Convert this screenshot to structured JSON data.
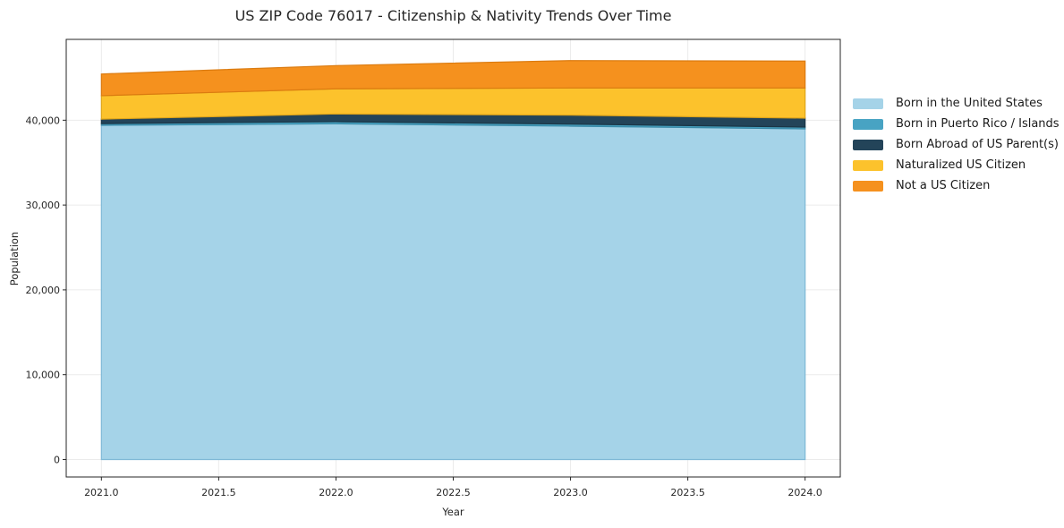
{
  "chart_data": {
    "type": "area",
    "stacked": true,
    "title": "US ZIP Code 76017 - Citizenship & Nativity Trends Over Time",
    "xlabel": "Year",
    "ylabel": "Population",
    "x": [
      2021,
      2022,
      2023,
      2024
    ],
    "series": [
      {
        "name": "Born in the United States",
        "color": "#A5D3E8",
        "edge": "#7FB9D6",
        "values": [
          39400,
          39580,
          39300,
          38980
        ]
      },
      {
        "name": "Born in Puerto Rico / Islands",
        "color": "#48A3C3",
        "edge": "#3A8BA8",
        "values": [
          200,
          250,
          240,
          210
        ]
      },
      {
        "name": "Born Abroad of US Parent(s)",
        "color": "#234459",
        "edge": "#1B3646",
        "values": [
          530,
          910,
          1060,
          1060
        ]
      },
      {
        "name": "Naturalized US Citizen",
        "color": "#FCC22C",
        "edge": "#E0A51A",
        "values": [
          2760,
          2960,
          3200,
          3550
        ]
      },
      {
        "name": "Not a US Citizen",
        "color": "#F5911E",
        "edge": "#DB7B10",
        "values": [
          2560,
          2740,
          3230,
          3170
        ]
      }
    ],
    "xticks": [
      2021.0,
      2021.5,
      2022.0,
      2022.5,
      2023.0,
      2023.5,
      2024.0
    ],
    "yticks": [
      0,
      10000,
      20000,
      30000,
      40000
    ],
    "xlim": [
      2020.85,
      2024.15
    ],
    "ylim": [
      -2060,
      49530
    ],
    "grid": true,
    "grid_color": "#ebebeb",
    "axis_color": "#262626",
    "legend_position": "right-outside"
  }
}
